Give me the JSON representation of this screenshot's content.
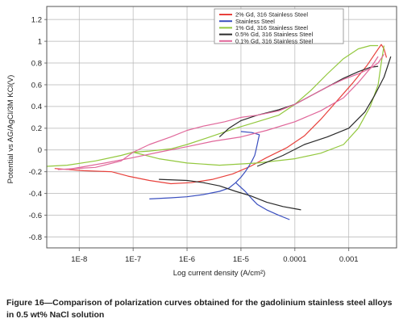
{
  "chart_data": {
    "type": "line",
    "xlabel": "Log current density (A/cm²)",
    "ylabel": "Potential vs AG/AgCl/3M KCl(V)",
    "x_scale": "log",
    "xlim": [
      2.5e-09,
      0.0077
    ],
    "ylim": [
      -0.9,
      1.32
    ],
    "x_ticks": [
      1e-08,
      1e-07,
      1e-06,
      1e-05,
      0.0001,
      0.001
    ],
    "x_tick_labels": [
      "1E-8",
      "1E-7",
      "1E-6",
      "1E-5",
      "0.0001",
      "0.001"
    ],
    "y_ticks": [
      -0.8,
      -0.6,
      -0.4,
      -0.2,
      0,
      0.2,
      0.4,
      0.6,
      0.8,
      1,
      1.2
    ],
    "y_tick_labels": [
      "-0.8",
      "-0.6",
      "-0.4",
      "-0.2",
      "0",
      "0.2",
      "0.4",
      "0.6",
      "0.8",
      "1",
      "1.2"
    ],
    "grid": true,
    "legend_position": "top-right",
    "series": [
      {
        "name": "2% Gd, 316 Stainless Steel",
        "color": "#e8413c",
        "points": [
          [
            3.5e-09,
            -0.17
          ],
          [
            1.2e-08,
            -0.19
          ],
          [
            4e-08,
            -0.2
          ],
          [
            8e-08,
            -0.24
          ],
          [
            2e-07,
            -0.28
          ],
          [
            5e-07,
            -0.31
          ],
          [
            1.2e-06,
            -0.3
          ],
          [
            3e-06,
            -0.27
          ],
          [
            7e-06,
            -0.22
          ],
          [
            1.5e-05,
            -0.15
          ],
          [
            3e-05,
            -0.07
          ],
          [
            7e-05,
            0.02
          ],
          [
            0.00015,
            0.13
          ],
          [
            0.0003,
            0.28
          ],
          [
            0.0006,
            0.45
          ],
          [
            0.0012,
            0.62
          ],
          [
            0.0022,
            0.78
          ],
          [
            0.0032,
            0.9
          ],
          [
            0.004,
            0.97
          ],
          [
            0.0045,
            0.93
          ],
          [
            0.005,
            0.85
          ]
        ]
      },
      {
        "name": "Stainless Steel",
        "color": "#3a4fbf",
        "points": [
          [
            2e-07,
            -0.45
          ],
          [
            5e-07,
            -0.44
          ],
          [
            1e-06,
            -0.43
          ],
          [
            2e-06,
            -0.41
          ],
          [
            4e-06,
            -0.38
          ],
          [
            6e-06,
            -0.35
          ],
          [
            8e-06,
            -0.3
          ],
          [
            1e-05,
            -0.25
          ],
          [
            1.2e-05,
            -0.2
          ],
          [
            1.4e-05,
            -0.15
          ],
          [
            1.6e-05,
            -0.1
          ],
          [
            1.8e-05,
            -0.05
          ],
          [
            1.9e-05,
            0
          ],
          [
            2e-05,
            0.05
          ],
          [
            2.1e-05,
            0.1
          ],
          [
            2.2e-05,
            0.14
          ],
          [
            1.6e-05,
            0.16
          ],
          [
            1e-05,
            0.17
          ]
        ]
      },
      {
        "name": "Stainless Steel",
        "color": "#3a4fbf",
        "points": [
          [
            8e-06,
            -0.3
          ],
          [
            1.2e-05,
            -0.38
          ],
          [
            1.6e-05,
            -0.45
          ],
          [
            2e-05,
            -0.5
          ],
          [
            3e-05,
            -0.55
          ],
          [
            5e-05,
            -0.6
          ],
          [
            8e-05,
            -0.64
          ]
        ]
      },
      {
        "name": "1% Gd, 316 Stainless Steel",
        "color": "#93c83e",
        "points": [
          [
            2.5e-09,
            -0.15
          ],
          [
            6e-09,
            -0.14
          ],
          [
            2e-08,
            -0.1
          ],
          [
            6e-08,
            -0.05
          ],
          [
            1e-07,
            -0.02
          ],
          [
            2e-07,
            -0.01
          ],
          [
            5e-07,
            0.01
          ],
          [
            1e-06,
            0.05
          ],
          [
            2e-06,
            0.1
          ],
          [
            4e-06,
            0.15
          ],
          [
            8e-06,
            0.2
          ],
          [
            2e-05,
            0.26
          ],
          [
            5e-05,
            0.32
          ],
          [
            0.0001,
            0.42
          ],
          [
            0.0002,
            0.55
          ],
          [
            0.0004,
            0.7
          ],
          [
            0.0008,
            0.84
          ],
          [
            0.0015,
            0.93
          ],
          [
            0.0025,
            0.96
          ],
          [
            0.0035,
            0.96
          ]
        ]
      },
      {
        "name": "1% Gd, 316 Stainless Steel",
        "color": "#93c83e",
        "points": [
          [
            1e-07,
            -0.02
          ],
          [
            3e-07,
            -0.08
          ],
          [
            1e-06,
            -0.12
          ],
          [
            4e-06,
            -0.14
          ],
          [
            2e-05,
            -0.12
          ],
          [
            0.0001,
            -0.08
          ],
          [
            0.0003,
            -0.03
          ],
          [
            0.0008,
            0.05
          ],
          [
            0.0015,
            0.2
          ],
          [
            0.0025,
            0.4
          ],
          [
            0.0035,
            0.6
          ],
          [
            0.004,
            0.8
          ],
          [
            0.0045,
            0.96
          ]
        ]
      },
      {
        "name": "0.5% Gd, 316 Stainless Steel",
        "color": "#2a2a2a",
        "points": [
          [
            3e-07,
            -0.27
          ],
          [
            1e-06,
            -0.28
          ],
          [
            2e-06,
            -0.3
          ],
          [
            4e-06,
            -0.33
          ],
          [
            8e-06,
            -0.38
          ],
          [
            1.5e-05,
            -0.42
          ],
          [
            3e-05,
            -0.48
          ],
          [
            6e-05,
            -0.52
          ],
          [
            0.0001,
            -0.54
          ],
          [
            0.00013,
            -0.55
          ]
        ]
      },
      {
        "name": "0.5% Gd, 316 Stainless Steel",
        "color": "#2a2a2a",
        "points": [
          [
            4e-06,
            0.12
          ],
          [
            6e-06,
            0.2
          ],
          [
            1e-05,
            0.27
          ],
          [
            2e-05,
            0.32
          ],
          [
            5e-05,
            0.37
          ],
          [
            0.0001,
            0.42
          ],
          [
            0.0002,
            0.5
          ],
          [
            0.0004,
            0.58
          ],
          [
            0.0008,
            0.66
          ],
          [
            0.0015,
            0.72
          ],
          [
            0.0025,
            0.76
          ],
          [
            0.0035,
            0.77
          ]
        ]
      },
      {
        "name": "0.5% Gd, 316 Stainless Steel",
        "color": "#2a2a2a",
        "points": [
          [
            2e-05,
            -0.15
          ],
          [
            6e-05,
            -0.05
          ],
          [
            0.00015,
            0.05
          ],
          [
            0.0004,
            0.12
          ],
          [
            0.001,
            0.2
          ],
          [
            0.002,
            0.35
          ],
          [
            0.003,
            0.5
          ],
          [
            0.0045,
            0.67
          ],
          [
            0.0055,
            0.8
          ],
          [
            0.006,
            0.86
          ]
        ]
      },
      {
        "name": "0.1% Gd, 316 Stainless Steel",
        "color": "#e0679a",
        "points": [
          [
            4e-09,
            -0.18
          ],
          [
            2e-08,
            -0.16
          ],
          [
            6e-08,
            -0.1
          ],
          [
            1e-07,
            -0.02
          ],
          [
            2e-07,
            0.05
          ],
          [
            5e-07,
            0.12
          ],
          [
            1e-06,
            0.18
          ],
          [
            2e-06,
            0.22
          ],
          [
            5e-06,
            0.26
          ],
          [
            1e-05,
            0.3
          ],
          [
            2e-05,
            0.32
          ],
          [
            5e-05,
            0.36
          ],
          [
            0.0001,
            0.42
          ],
          [
            0.0002,
            0.5
          ],
          [
            0.0004,
            0.58
          ],
          [
            0.0008,
            0.65
          ],
          [
            0.0015,
            0.7
          ],
          [
            0.0025,
            0.75
          ],
          [
            0.0035,
            0.8
          ],
          [
            0.0045,
            0.88
          ]
        ]
      },
      {
        "name": "0.1% Gd, 316 Stainless Steel",
        "color": "#e0679a",
        "points": [
          [
            6e-09,
            -0.18
          ],
          [
            3e-08,
            -0.12
          ],
          [
            1e-07,
            -0.07
          ],
          [
            3e-07,
            -0.02
          ],
          [
            1e-06,
            0.03
          ],
          [
            3e-06,
            0.08
          ],
          [
            1e-05,
            0.12
          ],
          [
            3e-05,
            0.18
          ],
          [
            0.0001,
            0.26
          ],
          [
            0.0003,
            0.36
          ],
          [
            0.0008,
            0.48
          ],
          [
            0.0015,
            0.62
          ],
          [
            0.0025,
            0.75
          ],
          [
            0.0035,
            0.86
          ]
        ]
      }
    ],
    "legend": [
      {
        "label": "2% Gd, 316 Stainless Steel",
        "color": "#e8413c"
      },
      {
        "label": "Stainless Steel",
        "color": "#3a4fbf"
      },
      {
        "label": "1% Gd, 316 Stainless Steel",
        "color": "#93c83e"
      },
      {
        "label": "0.5% Gd, 316 Stainless Steel",
        "color": "#2a2a2a"
      },
      {
        "label": "0.1% Gd, 316 Stainless Steel",
        "color": "#e0679a"
      }
    ]
  },
  "caption": "Figure 16—Comparison of polarization curves obtained for the gadolinium stainless steel alloys in 0.5 wt% NaCl solution"
}
